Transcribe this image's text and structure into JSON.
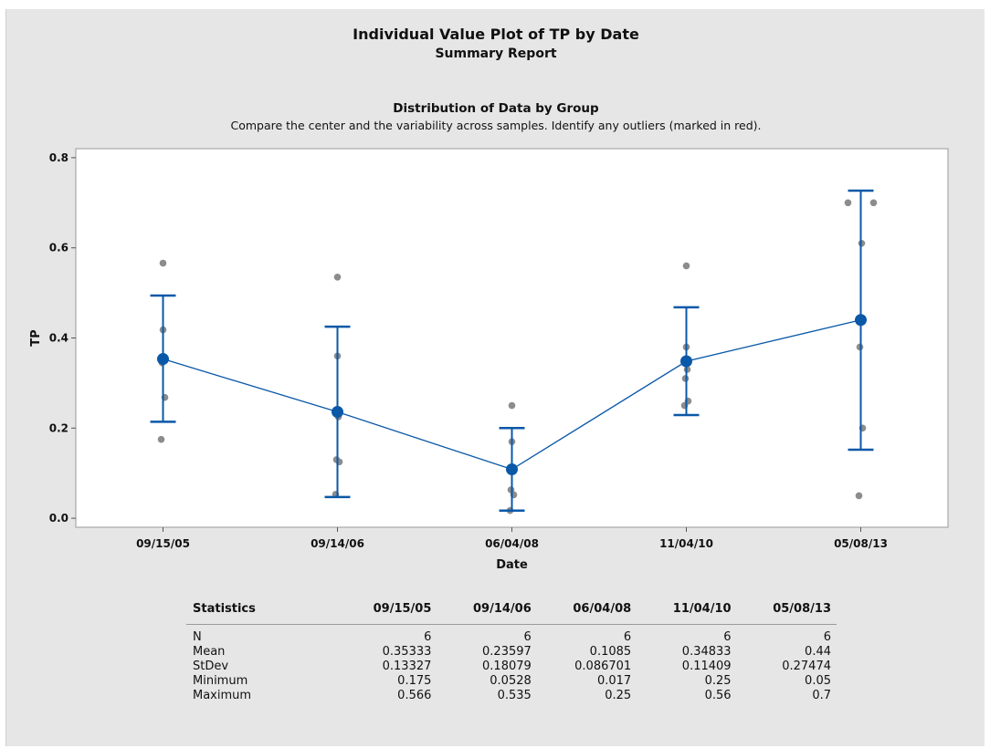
{
  "report": {
    "title": "Individual Value Plot of TP by Date",
    "subtitle": "Summary Report",
    "panel_title": "Distribution of Data by Group",
    "panel_subtitle": "Compare the center and the variability across samples. Identify any outliers (marked in red)."
  },
  "colors": {
    "background": "#e6e6e6",
    "plot_area": "#ffffff",
    "mean": "#0a58a8",
    "points": "#8c8c8c"
  },
  "chart_data": {
    "type": "scatter",
    "xlabel": "Date",
    "ylabel": "TP",
    "ylim": [
      -0.02,
      0.82
    ],
    "yticks": [
      "0.0",
      "0.2",
      "0.4",
      "0.6",
      "0.8"
    ],
    "ytick_values": [
      0,
      0.2,
      0.4,
      0.6,
      0.8
    ],
    "categories": [
      "09/15/05",
      "09/14/06",
      "06/04/08",
      "11/04/10",
      "05/08/13"
    ],
    "grid": false,
    "groups": [
      {
        "category": "09/15/05",
        "points": [
          0.175,
          0.268,
          0.345,
          0.35,
          0.418,
          0.566
        ],
        "mean": 0.35333,
        "interval": [
          0.214,
          0.494
        ]
      },
      {
        "category": "09/14/06",
        "points": [
          0.053,
          0.125,
          0.13,
          0.225,
          0.36,
          0.535
        ],
        "mean": 0.23597,
        "interval": [
          0.047,
          0.425
        ]
      },
      {
        "category": "06/04/08",
        "points": [
          0.017,
          0.052,
          0.063,
          0.105,
          0.17,
          0.25
        ],
        "mean": 0.1085,
        "interval": [
          0.017,
          0.2
        ]
      },
      {
        "category": "11/04/10",
        "points": [
          0.25,
          0.26,
          0.31,
          0.33,
          0.38,
          0.56
        ],
        "mean": 0.34833,
        "interval": [
          0.229,
          0.468
        ]
      },
      {
        "category": "05/08/13",
        "points": [
          0.05,
          0.2,
          0.38,
          0.61,
          0.7,
          0.7
        ],
        "mean": 0.44,
        "interval": [
          0.152,
          0.727
        ]
      }
    ]
  },
  "statistics": {
    "header": "Statistics",
    "columns": [
      "09/15/05",
      "09/14/06",
      "06/04/08",
      "11/04/10",
      "05/08/13"
    ],
    "rows": [
      {
        "label": "N",
        "values": [
          "6",
          "6",
          "6",
          "6",
          "6"
        ]
      },
      {
        "label": "Mean",
        "values": [
          "0.35333",
          "0.23597",
          "0.1085",
          "0.34833",
          "0.44"
        ]
      },
      {
        "label": "StDev",
        "values": [
          "0.13327",
          "0.18079",
          "0.086701",
          "0.11409",
          "0.27474"
        ]
      },
      {
        "label": "Minimum",
        "values": [
          "0.175",
          "0.0528",
          "0.017",
          "0.25",
          "0.05"
        ]
      },
      {
        "label": "Maximum",
        "values": [
          "0.566",
          "0.535",
          "0.25",
          "0.56",
          "0.7"
        ]
      }
    ]
  }
}
